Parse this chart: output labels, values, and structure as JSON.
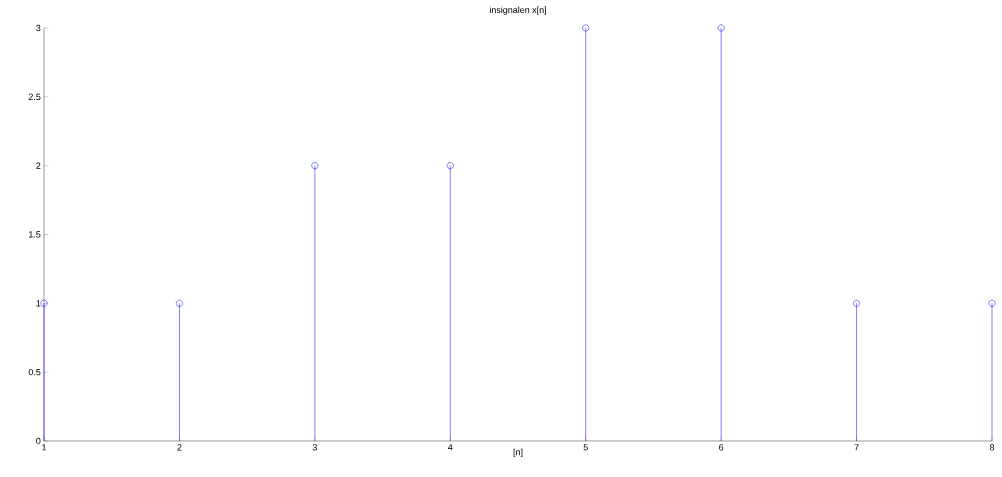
{
  "chart_data": {
    "type": "lollipop",
    "title": "insignalen x[n]",
    "xlabel": "[n]",
    "x": [
      1,
      2,
      3,
      4,
      5,
      6,
      7,
      8
    ],
    "values": [
      1,
      1,
      2,
      2,
      3,
      3,
      1,
      1
    ],
    "color": "#0000ff",
    "marker": "circle",
    "xlim": [
      1,
      8
    ],
    "xticks": [
      1,
      2,
      3,
      4,
      5,
      6,
      7,
      8
    ],
    "ylim": [
      0,
      3
    ],
    "yticks": [
      0,
      0.5,
      1,
      1.5,
      2,
      2.5,
      3
    ]
  }
}
